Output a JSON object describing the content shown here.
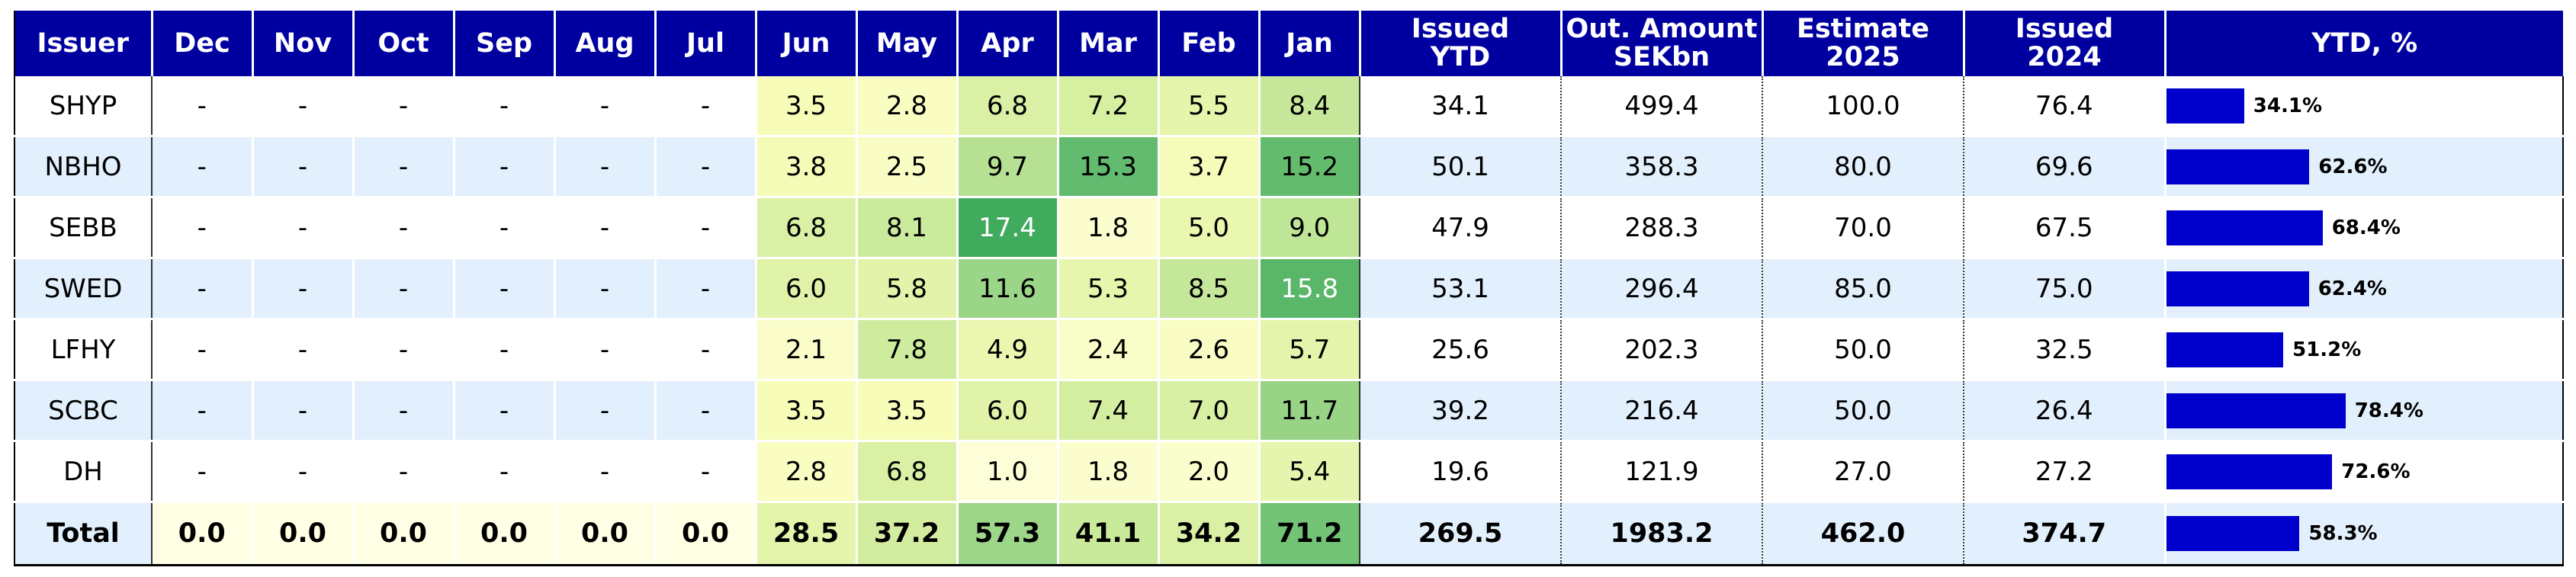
{
  "chart_data": {
    "type": "table",
    "columns": [
      "Issuer",
      "Dec",
      "Nov",
      "Oct",
      "Sep",
      "Aug",
      "Jul",
      "Jun",
      "May",
      "Apr",
      "Mar",
      "Feb",
      "Jan",
      "Issued YTD",
      "Out. Amount SEKbn",
      "Estimate 2025",
      "Issued 2024",
      "YTD, %"
    ],
    "header_lines": {
      "issued_ytd": [
        "Issued",
        "YTD"
      ],
      "out_amount": [
        "Out. Amount",
        "SEKbn"
      ],
      "estimate": [
        "Estimate",
        "2025"
      ],
      "issued_prev": [
        "Issued",
        "2024"
      ]
    },
    "rows": [
      {
        "issuer": "SHYP",
        "months": [
          "-",
          "-",
          "-",
          "-",
          "-",
          "-",
          "3.5",
          "2.8",
          "6.8",
          "7.2",
          "5.5",
          "8.4"
        ],
        "issued_ytd": "34.1",
        "out_amount": "499.4",
        "estimate": "100.0",
        "issued_prev": "76.4",
        "ytd_pct": 34.1,
        "ytd_label": "34.1%"
      },
      {
        "issuer": "NBHO",
        "months": [
          "-",
          "-",
          "-",
          "-",
          "-",
          "-",
          "3.8",
          "2.5",
          "9.7",
          "15.3",
          "3.7",
          "15.2"
        ],
        "issued_ytd": "50.1",
        "out_amount": "358.3",
        "estimate": "80.0",
        "issued_prev": "69.6",
        "ytd_pct": 62.6,
        "ytd_label": "62.6%"
      },
      {
        "issuer": "SEBB",
        "months": [
          "-",
          "-",
          "-",
          "-",
          "-",
          "-",
          "6.8",
          "8.1",
          "17.4",
          "1.8",
          "5.0",
          "9.0"
        ],
        "issued_ytd": "47.9",
        "out_amount": "288.3",
        "estimate": "70.0",
        "issued_prev": "67.5",
        "ytd_pct": 68.4,
        "ytd_label": "68.4%"
      },
      {
        "issuer": "SWED",
        "months": [
          "-",
          "-",
          "-",
          "-",
          "-",
          "-",
          "6.0",
          "5.8",
          "11.6",
          "5.3",
          "8.5",
          "15.8"
        ],
        "issued_ytd": "53.1",
        "out_amount": "296.4",
        "estimate": "85.0",
        "issued_prev": "75.0",
        "ytd_pct": 62.4,
        "ytd_label": "62.4%"
      },
      {
        "issuer": "LFHY",
        "months": [
          "-",
          "-",
          "-",
          "-",
          "-",
          "-",
          "2.1",
          "7.8",
          "4.9",
          "2.4",
          "2.6",
          "5.7"
        ],
        "issued_ytd": "25.6",
        "out_amount": "202.3",
        "estimate": "50.0",
        "issued_prev": "32.5",
        "ytd_pct": 51.2,
        "ytd_label": "51.2%"
      },
      {
        "issuer": "SCBC",
        "months": [
          "-",
          "-",
          "-",
          "-",
          "-",
          "-",
          "3.5",
          "3.5",
          "6.0",
          "7.4",
          "7.0",
          "11.7"
        ],
        "issued_ytd": "39.2",
        "out_amount": "216.4",
        "estimate": "50.0",
        "issued_prev": "26.4",
        "ytd_pct": 78.4,
        "ytd_label": "78.4%"
      },
      {
        "issuer": "DH",
        "months": [
          "-",
          "-",
          "-",
          "-",
          "-",
          "-",
          "2.8",
          "6.8",
          "1.0",
          "1.8",
          "2.0",
          "5.4"
        ],
        "issued_ytd": "19.6",
        "out_amount": "121.9",
        "estimate": "27.0",
        "issued_prev": "27.2",
        "ytd_pct": 72.6,
        "ytd_label": "72.6%"
      }
    ],
    "total": {
      "issuer": "Total",
      "months": [
        "0.0",
        "0.0",
        "0.0",
        "0.0",
        "0.0",
        "0.0",
        "28.5",
        "37.2",
        "57.3",
        "41.1",
        "34.2",
        "71.2"
      ],
      "issued_ytd": "269.5",
      "out_amount": "1983.2",
      "estimate": "462.0",
      "issued_prev": "374.7",
      "ytd_pct": 58.3,
      "ytd_label": "58.3%"
    },
    "heatmap_colormap": "YlGn",
    "heatmap_range": [
      0,
      20
    ],
    "total_heatmap_range": [
      0,
      100
    ],
    "bar_max_pct": 100
  },
  "colors": {
    "header_bg": "#0000a0",
    "header_text": "#ffffff",
    "bar": "#0000cc",
    "alt_row": "#e2f0fd"
  }
}
